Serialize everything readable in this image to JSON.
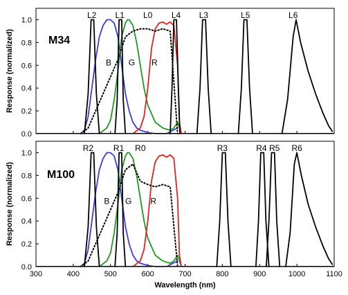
{
  "chart_data": [
    {
      "type": "line",
      "panel_label": "M34",
      "ylabel": "Response (normalized)",
      "xlabel": "",
      "xlim": [
        300,
        1100
      ],
      "ylim": [
        0,
        1.1
      ],
      "yticks": [
        "0.0",
        "0.2",
        "0.4",
        "0.6",
        "0.8",
        "1.0"
      ],
      "xticks": [],
      "grid": false,
      "series": [
        {
          "name": "B",
          "color": "#3a3ae6",
          "style": "solid",
          "x": [
            420,
            430,
            440,
            450,
            460,
            470,
            480,
            490,
            500,
            510,
            520,
            530,
            540,
            550,
            560,
            570,
            580,
            590,
            600,
            620,
            650,
            680
          ],
          "y": [
            0,
            0.03,
            0.15,
            0.4,
            0.65,
            0.85,
            0.95,
            1,
            1,
            0.97,
            0.85,
            0.6,
            0.35,
            0.2,
            0.1,
            0.05,
            0.03,
            0.02,
            0.01,
            0,
            0,
            0.05
          ]
        },
        {
          "name": "G",
          "color": "#1e9a1e",
          "style": "solid",
          "x": [
            470,
            490,
            500,
            510,
            520,
            530,
            540,
            545,
            550,
            560,
            570,
            580,
            590,
            600,
            620,
            640,
            660,
            670,
            680,
            690
          ],
          "y": [
            0,
            0.05,
            0.12,
            0.3,
            0.55,
            0.85,
            0.97,
            1,
            1,
            0.95,
            0.8,
            0.6,
            0.4,
            0.25,
            0.1,
            0.05,
            0.03,
            0.05,
            0.1,
            0
          ]
        },
        {
          "name": "R",
          "color": "#e62020",
          "style": "solid",
          "x": [
            560,
            580,
            590,
            600,
            610,
            620,
            630,
            640,
            650,
            660,
            670,
            680,
            685,
            690
          ],
          "y": [
            0,
            0.05,
            0.15,
            0.4,
            0.75,
            0.92,
            0.97,
            0.98,
            0.96,
            0.98,
            0.95,
            0.6,
            0.1,
            0
          ]
        },
        {
          "name": "",
          "color": "#000000",
          "style": "dotted",
          "x": [
            420,
            440,
            460,
            480,
            500,
            520,
            540,
            560,
            580,
            600,
            620,
            640,
            660,
            680
          ],
          "y": [
            0,
            0.05,
            0.2,
            0.35,
            0.5,
            0.65,
            0.85,
            0.9,
            0.92,
            0.92,
            0.9,
            0.92,
            0.9,
            0
          ]
        },
        {
          "name": "L2",
          "color": "#000000",
          "style": "solid",
          "x": [
            430,
            440,
            448,
            455,
            462,
            470
          ],
          "y": [
            0,
            0.35,
            1,
            1,
            0.35,
            0
          ]
        },
        {
          "name": "L1",
          "color": "#000000",
          "style": "solid",
          "x": [
            512,
            518,
            523,
            530,
            534,
            540
          ],
          "y": [
            0,
            0.3,
            1,
            1,
            0.3,
            0
          ]
        },
        {
          "name": "L4",
          "color": "#000000",
          "style": "solid",
          "x": [
            660,
            665,
            670,
            677,
            682,
            686
          ],
          "y": [
            0,
            0.4,
            1,
            1,
            0.4,
            0
          ]
        },
        {
          "name": "L3",
          "color": "#000000",
          "style": "solid",
          "x": [
            732,
            740,
            747,
            755,
            762,
            770
          ],
          "y": [
            0,
            0.4,
            1,
            1,
            0.4,
            0
          ]
        },
        {
          "name": "L5",
          "color": "#000000",
          "style": "solid",
          "x": [
            843,
            851,
            858,
            866,
            873,
            881
          ],
          "y": [
            0,
            0.4,
            1,
            1,
            0.4,
            0
          ]
        },
        {
          "name": "L6",
          "color": "#000000",
          "style": "solid",
          "x": [
            960,
            975,
            990,
            998,
            1010,
            1030,
            1050,
            1070,
            1085,
            1095
          ],
          "y": [
            0,
            0.3,
            0.85,
            1,
            0.8,
            0.55,
            0.35,
            0.18,
            0.07,
            0.02
          ]
        }
      ],
      "annotations": [
        {
          "text": "L2",
          "x": 450,
          "y": 1.12
        },
        {
          "text": "L1",
          "x": 525,
          "y": 1.12
        },
        {
          "text": "L0",
          "x": 600,
          "y": 1.12
        },
        {
          "text": "L4",
          "x": 676,
          "y": 1.12
        },
        {
          "text": "L3",
          "x": 750,
          "y": 1.12
        },
        {
          "text": "L5",
          "x": 862,
          "y": 1.12
        },
        {
          "text": "L6",
          "x": 990,
          "y": 1.12
        },
        {
          "text": "B",
          "x": 495,
          "y": 0.6,
          "color": "#3a3ae6"
        },
        {
          "text": "G",
          "x": 557,
          "y": 0.6,
          "color": "#1e9a1e"
        },
        {
          "text": "R",
          "x": 618,
          "y": 0.6,
          "color": "#e62020"
        }
      ]
    },
    {
      "type": "line",
      "panel_label": "M100",
      "ylabel": "Response (normalized)",
      "xlabel": "Wavelength (nm)",
      "xlim": [
        300,
        1100
      ],
      "ylim": [
        0,
        1.1
      ],
      "yticks": [
        "0.0",
        "0.2",
        "0.4",
        "0.6",
        "0.8",
        "1.0"
      ],
      "xticks": [
        "300",
        "400",
        "500",
        "600",
        "700",
        "800",
        "900",
        "1000",
        "1100"
      ],
      "grid": false,
      "series": [
        {
          "name": "B",
          "color": "#3a3ae6",
          "style": "solid",
          "x": [
            420,
            430,
            440,
            450,
            460,
            470,
            480,
            490,
            500,
            510,
            520,
            530,
            540,
            550,
            560,
            570,
            580,
            590,
            600,
            620,
            650,
            680
          ],
          "y": [
            0,
            0.03,
            0.15,
            0.4,
            0.65,
            0.85,
            0.95,
            1,
            1,
            0.97,
            0.85,
            0.6,
            0.35,
            0.2,
            0.1,
            0.05,
            0.03,
            0.02,
            0.01,
            0,
            0,
            0.05
          ]
        },
        {
          "name": "G",
          "color": "#1e9a1e",
          "style": "solid",
          "x": [
            470,
            490,
            500,
            510,
            520,
            530,
            540,
            545,
            550,
            560,
            570,
            580,
            590,
            600,
            620,
            640,
            660,
            670,
            680,
            690
          ],
          "y": [
            0,
            0.05,
            0.12,
            0.3,
            0.55,
            0.85,
            0.97,
            1,
            1,
            0.95,
            0.8,
            0.6,
            0.4,
            0.25,
            0.1,
            0.05,
            0.03,
            0.05,
            0.1,
            0
          ]
        },
        {
          "name": "R",
          "color": "#e62020",
          "style": "solid",
          "x": [
            560,
            580,
            590,
            600,
            610,
            620,
            630,
            640,
            650,
            660,
            670,
            680,
            685,
            690
          ],
          "y": [
            0,
            0.05,
            0.15,
            0.4,
            0.75,
            0.92,
            0.97,
            0.98,
            0.96,
            0.98,
            0.95,
            0.6,
            0.1,
            0
          ]
        },
        {
          "name": "",
          "color": "#000000",
          "style": "dotted",
          "x": [
            420,
            440,
            460,
            480,
            500,
            520,
            540,
            560,
            580,
            600,
            620,
            640,
            660,
            680
          ],
          "y": [
            0,
            0.05,
            0.2,
            0.35,
            0.5,
            0.65,
            0.85,
            0.9,
            0.75,
            0.72,
            0.7,
            0.72,
            0.7,
            0
          ]
        },
        {
          "name": "R2",
          "color": "#000000",
          "style": "solid",
          "x": [
            430,
            440,
            448,
            455,
            462,
            470
          ],
          "y": [
            0,
            0.35,
            1,
            1,
            0.35,
            0
          ]
        },
        {
          "name": "R1",
          "color": "#000000",
          "style": "solid",
          "x": [
            512,
            518,
            523,
            530,
            534,
            540
          ],
          "y": [
            0,
            0.3,
            1,
            1,
            0.3,
            0
          ]
        },
        {
          "name": "R3",
          "color": "#000000",
          "style": "solid",
          "x": [
            785,
            793,
            800,
            808,
            815,
            823
          ],
          "y": [
            0,
            0.4,
            1,
            1,
            0.4,
            0
          ]
        },
        {
          "name": "R4",
          "color": "#000000",
          "style": "solid",
          "x": [
            890,
            897,
            903,
            911,
            917,
            925
          ],
          "y": [
            0,
            0.4,
            1,
            1,
            0.4,
            0
          ]
        },
        {
          "name": "R5",
          "color": "#000000",
          "style": "solid",
          "x": [
            918,
            925,
            932,
            940,
            946,
            954
          ],
          "y": [
            0,
            0.4,
            1,
            1,
            0.4,
            0
          ]
        },
        {
          "name": "R6",
          "color": "#000000",
          "style": "solid",
          "x": [
            970,
            982,
            993,
            1000,
            1012,
            1030,
            1050,
            1070,
            1085,
            1095
          ],
          "y": [
            0,
            0.3,
            0.9,
            1,
            0.8,
            0.55,
            0.35,
            0.18,
            0.07,
            0.02
          ]
        }
      ],
      "annotations": [
        {
          "text": "R2",
          "x": 440,
          "y": 1.12
        },
        {
          "text": "R1",
          "x": 522,
          "y": 1.12
        },
        {
          "text": "R0",
          "x": 580,
          "y": 1.12
        },
        {
          "text": "R3",
          "x": 800,
          "y": 1.12
        },
        {
          "text": "R4",
          "x": 905,
          "y": 1.12
        },
        {
          "text": "R5",
          "x": 940,
          "y": 1.12
        },
        {
          "text": "R6",
          "x": 1000,
          "y": 1.12
        },
        {
          "text": "B",
          "x": 490,
          "y": 0.55,
          "color": "#3a3ae6"
        },
        {
          "text": "G",
          "x": 548,
          "y": 0.55,
          "color": "#1e9a1e"
        },
        {
          "text": "R",
          "x": 615,
          "y": 0.55,
          "color": "#e62020"
        }
      ]
    }
  ]
}
